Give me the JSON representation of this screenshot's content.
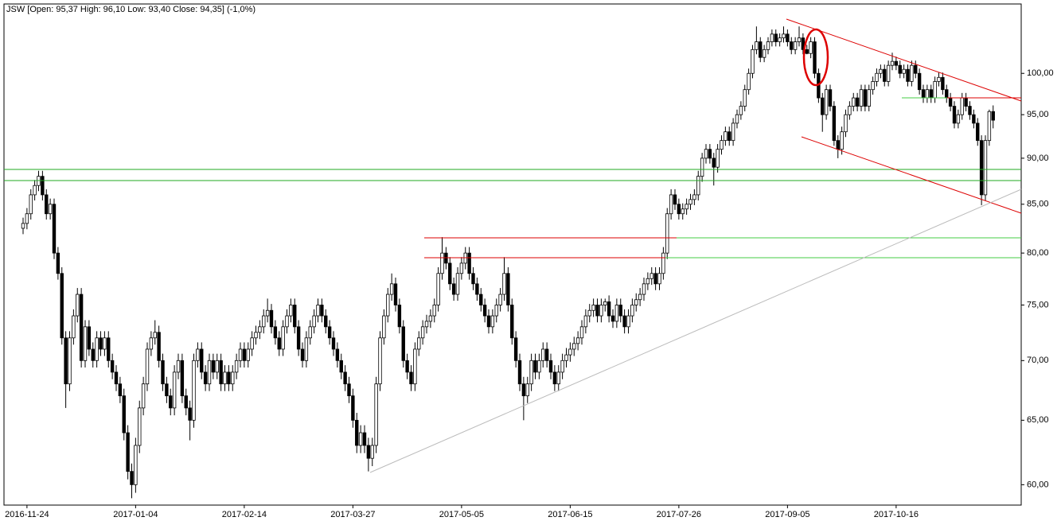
{
  "chart_data": {
    "type": "candlestick",
    "title": "JSW [Open: 95,37  High: 96,10  Low: 93,40  Close: 94,35] (-1,0%)",
    "categories": [
      null,
      "2016-11-24",
      null,
      null,
      null,
      null,
      null,
      null,
      null,
      null,
      null,
      null,
      null,
      null,
      null,
      null,
      null,
      null,
      null,
      null,
      null,
      null,
      null,
      null,
      null,
      null,
      null,
      null,
      null,
      "2017-01-04",
      null,
      null,
      null,
      null,
      null,
      null,
      null,
      null,
      null,
      null,
      null,
      null,
      null,
      null,
      null,
      null,
      null,
      null,
      null,
      null,
      null,
      null,
      null,
      null,
      null,
      null,
      null,
      "2017-02-14",
      null,
      null,
      null,
      null,
      null,
      null,
      null,
      null,
      null,
      null,
      null,
      null,
      null,
      null,
      null,
      null,
      null,
      null,
      null,
      null,
      null,
      null,
      null,
      null,
      null,
      null,
      null,
      "2017-03-27",
      null,
      null,
      null,
      null,
      null,
      null,
      null,
      null,
      null,
      null,
      null,
      null,
      null,
      null,
      null,
      null,
      null,
      null,
      null,
      null,
      null,
      null,
      null,
      null,
      null,
      null,
      null,
      "2017-05-05",
      null,
      null,
      null,
      null,
      null,
      null,
      null,
      null,
      null,
      null,
      null,
      null,
      null,
      null,
      null,
      null,
      null,
      null,
      null,
      null,
      null,
      null,
      null,
      null,
      null,
      null,
      null,
      "2017-06-15",
      null,
      null,
      null,
      null,
      null,
      null,
      null,
      null,
      null,
      null,
      null,
      null,
      null,
      null,
      null,
      null,
      null,
      null,
      null,
      null,
      null,
      null,
      null,
      null,
      null,
      null,
      null,
      "2017-07-26",
      null,
      null,
      null,
      null,
      null,
      null,
      null,
      null,
      null,
      null,
      null,
      null,
      null,
      null,
      null,
      null,
      null,
      null,
      null,
      null,
      null,
      null,
      null,
      null,
      null,
      null,
      null,
      "2017-09-05",
      null,
      null,
      null,
      null,
      null,
      null,
      null,
      null,
      null,
      null,
      null,
      null,
      null,
      null,
      null,
      null,
      null,
      null,
      null,
      null,
      null,
      null,
      null,
      null,
      null,
      null,
      null,
      "2017-10-16",
      null,
      null,
      null,
      null,
      null,
      null,
      null,
      null,
      null,
      null,
      null,
      null,
      null,
      null,
      null,
      null,
      null,
      null,
      null,
      null,
      null,
      null,
      null,
      null,
      null
    ],
    "open": [
      82.5,
      83,
      84,
      86,
      87,
      88,
      86,
      84,
      85,
      80,
      78,
      72,
      68,
      72,
      74,
      76,
      70,
      73,
      71,
      70,
      72,
      71,
      72,
      70,
      69,
      68,
      67,
      64,
      61,
      60,
      63,
      66,
      68,
      71,
      72,
      72.5,
      70,
      68,
      67,
      66,
      69,
      70,
      67,
      66,
      65,
      70,
      71,
      69,
      68,
      70,
      69,
      70,
      68,
      69,
      68,
      69,
      70,
      71,
      70,
      71,
      72,
      72.5,
      73,
      74,
      74.5,
      73,
      72,
      71,
      73,
      74,
      75,
      73,
      71,
      70,
      72,
      73,
      74,
      75,
      74,
      73,
      72,
      71,
      70,
      69,
      68,
      67,
      65,
      63,
      64,
      63,
      62,
      63,
      68,
      72,
      74,
      76,
      77,
      75,
      73,
      70,
      69,
      68,
      71,
      72,
      73,
      73.5,
      74,
      75,
      78,
      80,
      79,
      77,
      76,
      78,
      79,
      80,
      78,
      77,
      76,
      75,
      74,
      73,
      74,
      75,
      76,
      78,
      75,
      72,
      70,
      68,
      67,
      68,
      70,
      69,
      70,
      71,
      70,
      69,
      68,
      69,
      70,
      70.5,
      71,
      71.5,
      72,
      73,
      74,
      74.5,
      75,
      74,
      75,
      75.3,
      74,
      73.5,
      75,
      74,
      73,
      74,
      75,
      75.5,
      76,
      77,
      77.5,
      78,
      77,
      78,
      80,
      84,
      86,
      85,
      84,
      84.5,
      85,
      85.5,
      86,
      88,
      90,
      91,
      90,
      89,
      91,
      92,
      93,
      92,
      94,
      95,
      96,
      98,
      100,
      103,
      104,
      102,
      103,
      104,
      105,
      104,
      104.5,
      105,
      104,
      103,
      104,
      104.5,
      103,
      102.5,
      104,
      100,
      97,
      95,
      98,
      96,
      92,
      91,
      93,
      95,
      96,
      97,
      96,
      98,
      96,
      98,
      99,
      100,
      100.5,
      99,
      101,
      101.5,
      101,
      100,
      100.5,
      99,
      101,
      100,
      98,
      97,
      98,
      97,
      99,
      99.5,
      98,
      97,
      96,
      94,
      95,
      97,
      96,
      95,
      94,
      92,
      86,
      92,
      95.37
    ],
    "high": [
      83.6,
      84.6,
      86.6,
      87.6,
      88.6,
      88.6,
      86.6,
      85.6,
      85.6,
      80.6,
      78.6,
      72.6,
      72.6,
      74.6,
      76.6,
      76.6,
      73.6,
      73.6,
      71.6,
      72.6,
      72.6,
      72.6,
      72.6,
      70.6,
      69.6,
      68.6,
      67.6,
      64.6,
      61.6,
      63.6,
      66.6,
      68.6,
      71.6,
      72.6,
      73.6,
      73.1,
      70.6,
      68.6,
      67.6,
      69.6,
      70.6,
      70.6,
      67.6,
      66.6,
      70.6,
      71.6,
      71.6,
      69.6,
      70.6,
      70.6,
      70.6,
      70.6,
      69.6,
      69.6,
      69.6,
      70.6,
      71.6,
      71.6,
      71.6,
      72.6,
      73.1,
      73.6,
      74.6,
      75.6,
      75.1,
      73.6,
      72.6,
      73.6,
      74.6,
      75.6,
      75.6,
      73.6,
      71.6,
      72.6,
      73.6,
      74.6,
      75.6,
      75.6,
      74.6,
      73.6,
      72.6,
      71.6,
      70.6,
      69.6,
      68.6,
      67.6,
      65.6,
      64.6,
      64.6,
      63.6,
      63.6,
      68.6,
      72.6,
      74.6,
      76.6,
      78,
      77.6,
      75.6,
      73.6,
      70.6,
      69.6,
      71.6,
      72.6,
      73.6,
      74.1,
      74.6,
      75.6,
      78.6,
      81.6,
      80.6,
      79.6,
      77.6,
      78.6,
      79.6,
      80.6,
      80.6,
      78.6,
      77.6,
      76.6,
      75.6,
      74.6,
      74.6,
      75.6,
      76.6,
      79.6,
      78.6,
      75.6,
      72.6,
      70.6,
      68.6,
      68.6,
      70.6,
      70.6,
      70.6,
      71.6,
      71.6,
      70.6,
      69.6,
      69.6,
      70.6,
      71.1,
      71.6,
      72.1,
      72.6,
      73.6,
      74.6,
      75.1,
      75.6,
      75.6,
      75.6,
      75.6,
      75.9,
      74.6,
      75.6,
      75.6,
      74.6,
      74.6,
      75.6,
      76.1,
      76.6,
      77.6,
      78.1,
      78.6,
      78.6,
      78.6,
      80.6,
      84.6,
      86.6,
      86.6,
      85.6,
      85.1,
      85.6,
      86.1,
      86.6,
      88.6,
      90.6,
      91.6,
      91.6,
      90.6,
      91.6,
      92.6,
      93.6,
      93.6,
      94.6,
      95.6,
      96.6,
      98.6,
      100.6,
      103.6,
      106,
      104.6,
      103.6,
      104.6,
      105.6,
      105.6,
      105.1,
      106,
      105.6,
      104.6,
      104.6,
      106,
      105.1,
      103.6,
      104.6,
      104.6,
      100.6,
      97.6,
      98.6,
      98.6,
      96.6,
      92.6,
      93.6,
      95.6,
      96.6,
      97.6,
      97.6,
      98.6,
      98.6,
      98.6,
      99.6,
      100.6,
      101.1,
      101.1,
      101.6,
      102.6,
      102.1,
      101.6,
      101.1,
      101.1,
      101.6,
      101.6,
      100.6,
      98.6,
      98.6,
      98.6,
      99.6,
      100.1,
      100.1,
      98.6,
      97.6,
      96.6,
      95.6,
      97.6,
      97.6,
      96.6,
      95.6,
      94.6,
      92.6,
      92.6,
      95.6,
      96.1
    ],
    "low": [
      81.9,
      82.4,
      83.4,
      85.4,
      86.4,
      85.4,
      83.4,
      83.4,
      79.4,
      77.4,
      71.4,
      66,
      67.4,
      71.4,
      73.4,
      69.4,
      69.4,
      70.4,
      69.4,
      69.4,
      70.4,
      70.4,
      69.4,
      68.4,
      67.4,
      66.4,
      63.4,
      60.4,
      59,
      59.4,
      62.4,
      65.4,
      67.4,
      70.4,
      71.4,
      69.4,
      67.4,
      66.4,
      65.4,
      65.4,
      68.4,
      66.4,
      65.4,
      63.4,
      64.4,
      69.4,
      68.4,
      67.4,
      67.4,
      68.4,
      68.4,
      67.4,
      67.4,
      67.4,
      67.4,
      68.4,
      69.4,
      69.4,
      69.4,
      70.4,
      71.4,
      71.9,
      72.4,
      73.4,
      72.4,
      71.4,
      70.4,
      70.4,
      72.4,
      73.4,
      72.4,
      70.4,
      69.4,
      69.4,
      71.4,
      72.4,
      73.4,
      73.4,
      72.4,
      71.4,
      70.4,
      69.4,
      68.4,
      67.4,
      66.4,
      64.4,
      62.4,
      62.4,
      62.4,
      61,
      61.4,
      62.4,
      67.4,
      71.4,
      73.4,
      75.4,
      74.4,
      72.4,
      69.4,
      68.4,
      67.4,
      67.4,
      70.4,
      71.4,
      72.4,
      72.9,
      73.4,
      74.4,
      77.4,
      78.4,
      76.4,
      75.4,
      75.4,
      77.4,
      78.4,
      77.4,
      76.4,
      75.4,
      74.4,
      73.4,
      72.4,
      72.4,
      73.4,
      74.4,
      75.4,
      74.4,
      71.4,
      69.4,
      67.4,
      65,
      66.4,
      67.4,
      68.4,
      68.4,
      69.4,
      69.4,
      68.4,
      67.4,
      67.4,
      68.4,
      69.4,
      69.9,
      70.4,
      70.9,
      71.4,
      72.4,
      73.4,
      73.9,
      73.4,
      73.4,
      74.4,
      73.4,
      72.9,
      72.9,
      73.4,
      72.4,
      72.4,
      73.4,
      74.4,
      74.9,
      75.4,
      76.4,
      76.9,
      76.4,
      76.4,
      77.4,
      79.4,
      83.4,
      84.4,
      83.4,
      83.4,
      83.9,
      84.4,
      84.9,
      85.4,
      87.4,
      89.4,
      89.4,
      87,
      88.4,
      90.4,
      91.4,
      91.4,
      91.4,
      93.4,
      94.4,
      95.4,
      97.4,
      99.4,
      102.4,
      101.4,
      101.4,
      102.4,
      103.4,
      103.4,
      103.4,
      103.9,
      103.4,
      102.4,
      102.4,
      103.4,
      102.4,
      102.4,
      101.9,
      99.4,
      96.4,
      93,
      94.4,
      95.4,
      91.4,
      90,
      90.4,
      92.4,
      94.4,
      95.4,
      95.4,
      95.4,
      95.4,
      95.4,
      97.4,
      98.4,
      99.4,
      98.4,
      98.4,
      100.4,
      100.4,
      99.4,
      99.4,
      98.4,
      98.4,
      99.4,
      97.4,
      96.4,
      96.4,
      96.4,
      96.4,
      98.4,
      97.4,
      96.4,
      95.4,
      93.4,
      93.4,
      94.4,
      95.4,
      94.4,
      93.4,
      91.4,
      84.9,
      85.4,
      91.4,
      93.4
    ],
    "close": [
      83,
      84,
      86,
      87,
      88,
      86,
      84,
      85,
      80,
      78,
      72,
      68,
      72,
      74,
      76,
      70,
      73,
      71,
      70,
      72,
      71,
      72,
      70,
      69,
      68,
      67,
      64,
      61,
      60,
      63,
      66,
      68,
      71,
      72,
      72.5,
      70,
      68,
      67,
      66,
      69,
      70,
      67,
      66,
      65,
      70,
      71,
      69,
      68,
      70,
      69,
      70,
      68,
      69,
      68,
      69,
      70,
      71,
      70,
      71,
      72,
      72.5,
      73,
      74,
      74.5,
      73,
      72,
      71,
      73,
      74,
      75,
      73,
      71,
      70,
      72,
      73,
      74,
      75,
      74,
      73,
      72,
      71,
      70,
      69,
      68,
      67,
      65,
      63,
      64,
      63,
      62,
      63,
      68,
      72,
      74,
      76,
      77,
      75,
      73,
      70,
      69,
      68,
      71,
      72,
      73,
      73.5,
      74,
      75,
      78,
      80,
      79,
      77,
      76,
      78,
      79,
      80,
      78,
      77,
      76,
      75,
      74,
      73,
      74,
      75,
      76,
      78,
      75,
      72,
      70,
      68,
      67,
      68,
      70,
      69,
      70,
      71,
      70,
      69,
      68,
      69,
      70,
      70.5,
      71,
      71.5,
      72,
      73,
      74,
      74.5,
      75,
      74,
      75,
      75.3,
      74,
      73.5,
      75,
      74,
      73,
      74,
      75,
      75.5,
      76,
      77,
      77.5,
      78,
      77,
      78,
      80,
      84,
      86,
      85,
      84,
      84.5,
      85,
      85.5,
      86,
      88,
      90,
      91,
      90,
      89,
      91,
      92,
      93,
      92,
      94,
      95,
      96,
      98,
      100,
      103,
      104,
      102,
      103,
      104,
      105,
      104,
      104.5,
      105,
      104,
      103,
      104,
      104.5,
      103,
      102.5,
      104,
      100,
      97,
      95,
      98,
      96,
      92,
      91,
      93,
      95,
      96,
      97,
      96,
      98,
      96,
      98,
      99,
      100,
      100.5,
      99,
      101,
      101.5,
      101,
      100,
      100.5,
      99,
      101,
      100,
      98,
      97,
      98,
      97,
      99,
      99.5,
      98,
      97,
      96,
      94,
      95,
      97,
      96,
      95,
      94,
      92,
      86,
      92,
      95.37,
      94.35
    ],
    "up_color": "#ffffff",
    "down_color": "#000000",
    "wick_color": "#000000",
    "log_scale": true,
    "grid": false,
    "ylim": [
      58.5,
      109
    ],
    "yticks": [
      {
        "value": 60,
        "label": "60,00"
      },
      {
        "value": 65,
        "label": "65,00"
      },
      {
        "value": 70,
        "label": "70,00"
      },
      {
        "value": 75,
        "label": "75,00"
      },
      {
        "value": 80,
        "label": "80,00"
      },
      {
        "value": 85,
        "label": "85,00"
      },
      {
        "value": 90,
        "label": "90,00"
      },
      {
        "value": 95,
        "label": "95,00"
      },
      {
        "value": 100,
        "label": "100,00"
      }
    ]
  }
}
